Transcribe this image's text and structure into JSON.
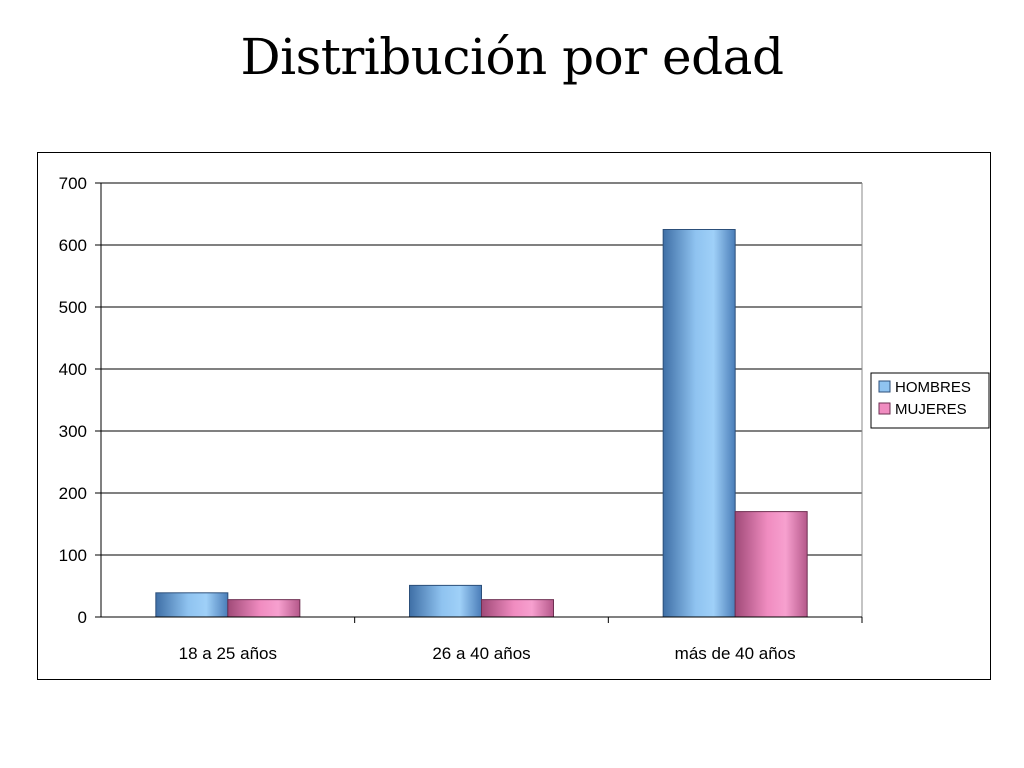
{
  "slide": {
    "title": "Distribución por edad"
  },
  "colors": {
    "hombres": "#8fc3f0",
    "mujeres": "#f08cc0"
  },
  "chart_data": {
    "type": "bar",
    "title": "",
    "xlabel": "",
    "ylabel": "",
    "categories": [
      "18 a 25 años",
      "26 a 40 años",
      "más de 40 años"
    ],
    "series": [
      {
        "name": "HOMBRES",
        "values": [
          39,
          51,
          625
        ]
      },
      {
        "name": "MUJERES",
        "values": [
          28,
          28,
          170
        ]
      }
    ],
    "ylim": [
      0,
      700
    ],
    "yticks": [
      "0",
      "100",
      "200",
      "300",
      "400",
      "500",
      "600",
      "700"
    ],
    "grid": true,
    "legend": "right"
  }
}
